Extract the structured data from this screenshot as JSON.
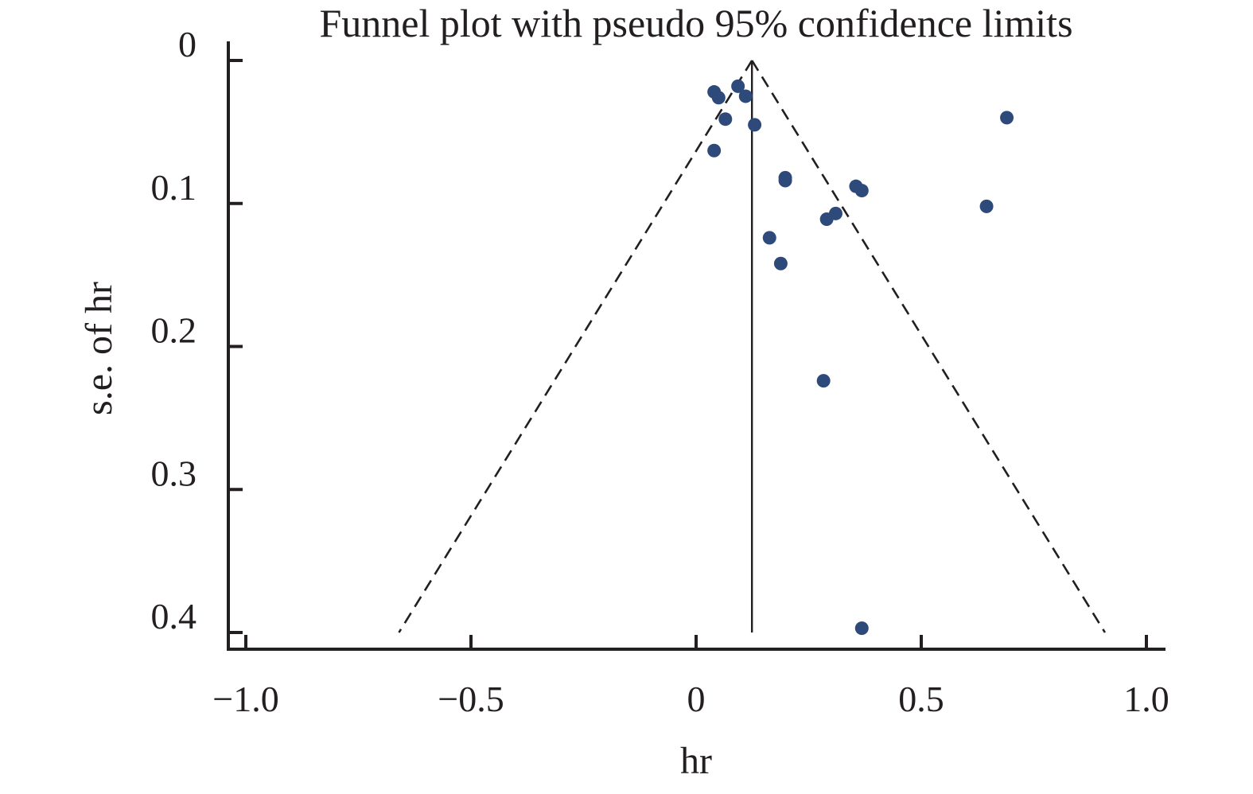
{
  "chart_data": {
    "type": "scatter",
    "title": "Funnel plot with pseudo 95% confidence limits",
    "xlabel": "hr",
    "ylabel": "s.e. of hr",
    "xlim": [
      -1.04,
      1.04
    ],
    "ylim": [
      0,
      0.412
    ],
    "y_reversed": true,
    "x_ticks": [
      -1.0,
      -0.5,
      0,
      0.5,
      1.0
    ],
    "x_tick_labels": [
      "−1.0",
      "−0.5",
      "0",
      "0.5",
      "1.0"
    ],
    "y_ticks": [
      0,
      0.1,
      0.2,
      0.3,
      0.4
    ],
    "y_tick_labels": [
      "0",
      "0.1",
      "0.2",
      "0.3",
      "0.4"
    ],
    "grid": false,
    "pooled_estimate": 0.124,
    "confidence_limits": [
      {
        "hr": 0.124,
        "se": 0
      },
      {
        "hr": -0.66,
        "se": 0.4
      },
      {
        "hr": 0.908,
        "se": 0.4
      }
    ],
    "points": [
      {
        "hr": 0.04,
        "se": 0.022
      },
      {
        "hr": 0.05,
        "se": 0.026
      },
      {
        "hr": 0.093,
        "se": 0.018
      },
      {
        "hr": 0.11,
        "se": 0.025
      },
      {
        "hr": 0.065,
        "se": 0.041
      },
      {
        "hr": 0.13,
        "se": 0.045
      },
      {
        "hr": 0.04,
        "se": 0.063
      },
      {
        "hr": 0.198,
        "se": 0.082
      },
      {
        "hr": 0.198,
        "se": 0.084
      },
      {
        "hr": 0.355,
        "se": 0.088
      },
      {
        "hr": 0.368,
        "se": 0.091
      },
      {
        "hr": 0.31,
        "se": 0.107
      },
      {
        "hr": 0.29,
        "se": 0.111
      },
      {
        "hr": 0.163,
        "se": 0.124
      },
      {
        "hr": 0.188,
        "se": 0.142
      },
      {
        "hr": 0.283,
        "se": 0.224
      },
      {
        "hr": 0.368,
        "se": 0.397
      },
      {
        "hr": 0.645,
        "se": 0.102
      },
      {
        "hr": 0.69,
        "se": 0.04
      }
    ],
    "point_color": "#2e4a7a",
    "line_color": "#231f20"
  }
}
